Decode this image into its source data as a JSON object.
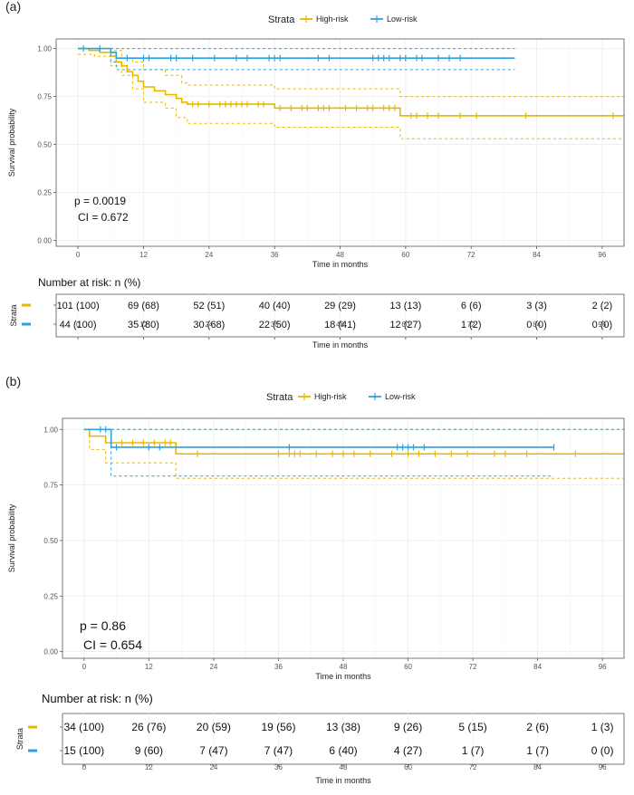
{
  "colors": {
    "high": "#E7B800",
    "low": "#2E9FDF",
    "grid": "#ececec",
    "border": "#555555"
  },
  "chart_data": [
    {
      "type": "line",
      "panel_label": "(a)",
      "legend": {
        "title": "Strata",
        "entries": [
          "High-risk",
          "Low-risk"
        ]
      },
      "xlabel": "Time in months",
      "ylabel": "Survival probability",
      "xlim": [
        -4,
        100
      ],
      "ylim": [
        -0.03,
        1.05
      ],
      "xticks": [
        "0",
        "12",
        "24",
        "36",
        "48",
        "60",
        "72",
        "84",
        "96"
      ],
      "yticks": [
        "0.00",
        "0.25",
        "0.50",
        "0.75",
        "1.00"
      ],
      "annotations": [
        "p = 0.0019",
        "CI = 0.672"
      ],
      "series": [
        {
          "name": "High-risk",
          "steps": [
            [
              0,
              1.0
            ],
            [
              2,
              0.99
            ],
            [
              4,
              0.98
            ],
            [
              6,
              0.96
            ],
            [
              7,
              0.93
            ],
            [
              8,
              0.91
            ],
            [
              9,
              0.88
            ],
            [
              10,
              0.86
            ],
            [
              11,
              0.83
            ],
            [
              12,
              0.8
            ],
            [
              14,
              0.78
            ],
            [
              16,
              0.76
            ],
            [
              18,
              0.74
            ],
            [
              19,
              0.72
            ],
            [
              20,
              0.71
            ],
            [
              36,
              0.69
            ],
            [
              59,
              0.65
            ],
            [
              100,
              0.65
            ]
          ],
          "upper": [
            [
              0,
              1.0
            ],
            [
              2,
              1.0
            ],
            [
              6,
              0.99
            ],
            [
              8,
              0.95
            ],
            [
              10,
              0.93
            ],
            [
              12,
              0.89
            ],
            [
              16,
              0.86
            ],
            [
              19,
              0.82
            ],
            [
              20,
              0.81
            ],
            [
              36,
              0.79
            ],
            [
              59,
              0.75
            ],
            [
              100,
              0.75
            ]
          ],
          "lower": [
            [
              0,
              0.97
            ],
            [
              3,
              0.96
            ],
            [
              6,
              0.91
            ],
            [
              8,
              0.86
            ],
            [
              10,
              0.79
            ],
            [
              12,
              0.72
            ],
            [
              16,
              0.69
            ],
            [
              18,
              0.64
            ],
            [
              20,
              0.61
            ],
            [
              36,
              0.59
            ],
            [
              59,
              0.53
            ],
            [
              100,
              0.53
            ]
          ],
          "censors": [
            [
              21,
              0.71
            ],
            [
              22,
              0.71
            ],
            [
              24,
              0.71
            ],
            [
              26,
              0.71
            ],
            [
              27,
              0.71
            ],
            [
              28,
              0.71
            ],
            [
              29,
              0.71
            ],
            [
              30,
              0.71
            ],
            [
              31,
              0.71
            ],
            [
              33,
              0.71
            ],
            [
              34,
              0.71
            ],
            [
              37,
              0.69
            ],
            [
              39,
              0.69
            ],
            [
              41,
              0.69
            ],
            [
              42,
              0.69
            ],
            [
              44,
              0.69
            ],
            [
              45,
              0.69
            ],
            [
              46,
              0.69
            ],
            [
              49,
              0.69
            ],
            [
              51,
              0.69
            ],
            [
              53,
              0.69
            ],
            [
              54,
              0.69
            ],
            [
              56,
              0.69
            ],
            [
              57,
              0.69
            ],
            [
              58,
              0.69
            ],
            [
              61,
              0.65
            ],
            [
              62,
              0.65
            ],
            [
              64,
              0.65
            ],
            [
              66,
              0.65
            ],
            [
              70,
              0.65
            ],
            [
              73,
              0.65
            ],
            [
              82,
              0.65
            ],
            [
              98,
              0.65
            ]
          ]
        },
        {
          "name": "Low-risk",
          "steps": [
            [
              0,
              1.0
            ],
            [
              6,
              0.98
            ],
            [
              7,
              0.95
            ],
            [
              80,
              0.95
            ]
          ],
          "upper": [
            [
              0,
              1.0
            ],
            [
              80,
              1.0
            ]
          ],
          "lower": [
            [
              0,
              1.0
            ],
            [
              6,
              0.93
            ],
            [
              7,
              0.89
            ],
            [
              80,
              0.89
            ]
          ],
          "censors": [
            [
              1,
              1.0
            ],
            [
              4,
              1.0
            ],
            [
              9,
              0.95
            ],
            [
              12,
              0.95
            ],
            [
              13,
              0.95
            ],
            [
              17,
              0.95
            ],
            [
              18,
              0.95
            ],
            [
              21,
              0.95
            ],
            [
              25,
              0.95
            ],
            [
              29,
              0.95
            ],
            [
              31,
              0.95
            ],
            [
              35,
              0.95
            ],
            [
              36,
              0.95
            ],
            [
              37,
              0.95
            ],
            [
              44,
              0.95
            ],
            [
              46,
              0.95
            ],
            [
              54,
              0.95
            ],
            [
              55,
              0.95
            ],
            [
              56,
              0.95
            ],
            [
              57,
              0.95
            ],
            [
              59,
              0.95
            ],
            [
              60,
              0.95
            ],
            [
              62,
              0.95
            ],
            [
              63,
              0.95
            ],
            [
              66,
              0.95
            ],
            [
              68,
              0.95
            ],
            [
              70,
              0.95
            ]
          ]
        }
      ],
      "risk_table": {
        "title": "Number at risk: n (%)",
        "strata_label": "Strata",
        "xlabel": "Time in months",
        "rows": [
          [
            "101 (100)",
            "69 (68)",
            "52 (51)",
            "40 (40)",
            "29 (29)",
            "13 (13)",
            "6 (6)",
            "3 (3)",
            "2 (2)"
          ],
          [
            "44 (100)",
            "35 (80)",
            "30 (68)",
            "22 (50)",
            "18 (41)",
            "12 (27)",
            "1 (2)",
            "0 (0)",
            "0 (0)"
          ]
        ]
      }
    },
    {
      "type": "line",
      "panel_label": "(b)",
      "legend": {
        "title": "Strata",
        "entries": [
          "High-risk",
          "Low-risk"
        ]
      },
      "xlabel": "Time in months",
      "ylabel": "Survival probability",
      "xlim": [
        -4,
        100
      ],
      "ylim": [
        -0.03,
        1.05
      ],
      "xticks": [
        "0",
        "12",
        "24",
        "36",
        "48",
        "60",
        "72",
        "84",
        "96"
      ],
      "yticks": [
        "0.00",
        "0.25",
        "0.50",
        "0.75",
        "1.00"
      ],
      "annotations": [
        "p = 0.86",
        "CI = 0.654"
      ],
      "series": [
        {
          "name": "High-risk",
          "steps": [
            [
              0,
              1.0
            ],
            [
              1,
              0.97
            ],
            [
              4,
              0.94
            ],
            [
              17,
              0.89
            ],
            [
              100,
              0.89
            ]
          ],
          "upper": [
            [
              0,
              1.0
            ],
            [
              100,
              1.0
            ]
          ],
          "lower": [
            [
              0,
              1.0
            ],
            [
              1,
              0.91
            ],
            [
              4,
              0.85
            ],
            [
              17,
              0.78
            ],
            [
              100,
              0.78
            ]
          ],
          "censors": [
            [
              5,
              0.94
            ],
            [
              7,
              0.94
            ],
            [
              9,
              0.94
            ],
            [
              11,
              0.94
            ],
            [
              13,
              0.94
            ],
            [
              15,
              0.94
            ],
            [
              16,
              0.94
            ],
            [
              21,
              0.89
            ],
            [
              36,
              0.89
            ],
            [
              38,
              0.89
            ],
            [
              39,
              0.89
            ],
            [
              40,
              0.89
            ],
            [
              43,
              0.89
            ],
            [
              46,
              0.89
            ],
            [
              48,
              0.89
            ],
            [
              50,
              0.89
            ],
            [
              53,
              0.89
            ],
            [
              57,
              0.89
            ],
            [
              60,
              0.89
            ],
            [
              62,
              0.89
            ],
            [
              65,
              0.89
            ],
            [
              68,
              0.89
            ],
            [
              71,
              0.89
            ],
            [
              76,
              0.89
            ],
            [
              78,
              0.89
            ],
            [
              82,
              0.89
            ],
            [
              91,
              0.89
            ]
          ]
        },
        {
          "name": "Low-risk",
          "steps": [
            [
              0,
              1.0
            ],
            [
              4,
              1.0
            ],
            [
              5,
              0.92
            ],
            [
              87,
              0.92
            ]
          ],
          "upper": [
            [
              0,
              1.0
            ],
            [
              100,
              1.0
            ]
          ],
          "lower": [
            [
              0,
              1.0
            ],
            [
              4,
              1.0
            ],
            [
              5,
              0.79
            ],
            [
              87,
              0.79
            ]
          ],
          "censors": [
            [
              3,
              1.0
            ],
            [
              4,
              1.0
            ],
            [
              6,
              0.92
            ],
            [
              12,
              0.92
            ],
            [
              14,
              0.92
            ],
            [
              38,
              0.92
            ],
            [
              58,
              0.92
            ],
            [
              59,
              0.92
            ],
            [
              60,
              0.92
            ],
            [
              61,
              0.92
            ],
            [
              63,
              0.92
            ],
            [
              87,
              0.92
            ]
          ]
        }
      ],
      "risk_table": {
        "title": "Number at risk: n (%)",
        "strata_label": "Strata",
        "xlabel": "Time in months",
        "rows": [
          [
            "34 (100)",
            "26 (76)",
            "20 (59)",
            "19 (56)",
            "13 (38)",
            "9 (26)",
            "5 (15)",
            "2 (6)",
            "1 (3)"
          ],
          [
            "15 (100)",
            "9 (60)",
            "7 (47)",
            "7 (47)",
            "6 (40)",
            "4 (27)",
            "1 (7)",
            "1 (7)",
            "0 (0)"
          ]
        ]
      }
    }
  ]
}
